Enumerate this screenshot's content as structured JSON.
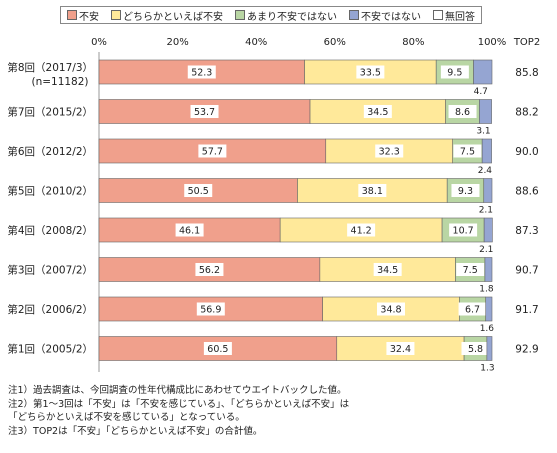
{
  "legend": [
    {
      "label": "不安",
      "color": "#F0A08C"
    },
    {
      "label": "どちらかといえば不安",
      "color": "#FFE99A"
    },
    {
      "label": "あまり不安ではない",
      "color": "#B9D6A4"
    },
    {
      "label": "不安ではない",
      "color": "#95A5D2"
    },
    {
      "label": "無回答",
      "color": "#FFFFFF"
    }
  ],
  "notes": [
    "注1）過去調査は、今回調査の性年代構成比にあわせてウエイトバックした値。",
    "注2）第1～3回は「不安」は「不安を感じている」、「どちらかといえば不安」は",
    "「どちらかといえば不安を感じている」となっている。",
    "注3）TOP2は「不安」「どちらかといえば不安」の合計値。"
  ],
  "chart_data": {
    "type": "bar",
    "orientation": "horizontal",
    "stacked": true,
    "top2_header": "TOP2",
    "xlim": [
      0,
      100
    ],
    "xticks": [
      "0%",
      "20%",
      "40%",
      "60%",
      "80%",
      "100%"
    ],
    "categories": [
      "第8回（2017/3）",
      "第7回（2015/2）",
      "第6回（2012/2）",
      "第5回（2010/2）",
      "第4回（2008/2）",
      "第3回（2007/2）",
      "第2回（2006/2）",
      "第1回（2005/2）"
    ],
    "category_sub": [
      "(n=11182)",
      "",
      "",
      "",
      "",
      "",
      "",
      ""
    ],
    "series": [
      {
        "name": "不安",
        "color": "#F0A08C",
        "values": [
          52.3,
          53.7,
          57.7,
          50.5,
          46.1,
          56.2,
          56.9,
          60.5
        ]
      },
      {
        "name": "どちらかといえば不安",
        "color": "#FFE99A",
        "values": [
          33.5,
          34.5,
          32.3,
          38.1,
          41.2,
          34.5,
          34.8,
          32.4
        ]
      },
      {
        "name": "あまり不安ではない",
        "color": "#B9D6A4",
        "values": [
          9.5,
          8.6,
          7.5,
          9.3,
          10.7,
          7.5,
          6.7,
          5.8
        ]
      },
      {
        "name": "不安ではない",
        "color": "#95A5D2",
        "values": [
          4.7,
          3.1,
          2.4,
          2.1,
          2.1,
          1.8,
          1.6,
          1.3
        ]
      },
      {
        "name": "無回答",
        "color": "#FFFFFF",
        "values": [
          0,
          0,
          0,
          0,
          0,
          0,
          0,
          0
        ]
      }
    ],
    "top2": [
      "85.8",
      "88.2",
      "90.0",
      "88.6",
      "87.3",
      "90.7",
      "91.7",
      "92.9"
    ]
  }
}
